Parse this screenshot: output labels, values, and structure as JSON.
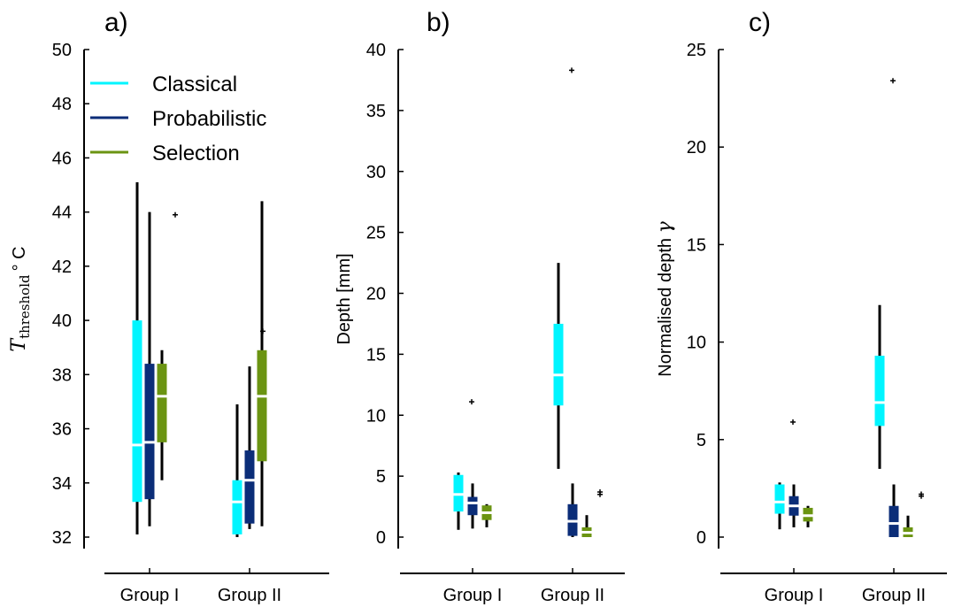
{
  "colors": {
    "Classical": "#00f5ff",
    "Probabilistic": "#0b2d78",
    "Selection": "#6b9412",
    "whisker": "#000000",
    "median": "#ffffff"
  },
  "legend": [
    "Classical",
    "Probabilistic",
    "Selection"
  ],
  "chart_data": [
    {
      "type": "box",
      "panel_label": "a)",
      "ylabel": "T",
      "ylabel_sub": "threshold",
      "ylabel_unit": "° C",
      "yticks": [
        32,
        34,
        36,
        38,
        40,
        42,
        44,
        46,
        48,
        50
      ],
      "ylim": [
        32,
        50
      ],
      "categories": [
        "Group I",
        "Group II"
      ],
      "legend_position": "top-left",
      "series": [
        {
          "name": "Classical",
          "boxes": [
            {
              "whislo": 32.1,
              "q1": 33.3,
              "med": 35.4,
              "q3": 40.0,
              "whishi": 45.1,
              "fliers": []
            },
            {
              "whislo": 32.0,
              "q1": 32.1,
              "med": 33.3,
              "q3": 34.1,
              "whishi": 36.9,
              "fliers": []
            }
          ]
        },
        {
          "name": "Probabilistic",
          "boxes": [
            {
              "whislo": 32.4,
              "q1": 33.4,
              "med": 35.5,
              "q3": 38.4,
              "whishi": 44.0,
              "fliers": []
            },
            {
              "whislo": 32.3,
              "q1": 32.5,
              "med": 34.1,
              "q3": 35.2,
              "whishi": 38.3,
              "fliers": [
                39.6
              ]
            }
          ]
        },
        {
          "name": "Selection",
          "boxes": [
            {
              "whislo": 34.1,
              "q1": 35.5,
              "med": 37.2,
              "q3": 38.4,
              "whishi": 38.9,
              "fliers": [
                43.9
              ]
            },
            {
              "whislo": 32.4,
              "q1": 34.8,
              "med": 37.2,
              "q3": 38.9,
              "whishi": 44.4,
              "fliers": []
            }
          ]
        }
      ]
    },
    {
      "type": "box",
      "panel_label": "b)",
      "ylabel": "Depth [mm]",
      "yticks": [
        0,
        5,
        10,
        15,
        20,
        25,
        30,
        35,
        40
      ],
      "ylim": [
        0,
        40
      ],
      "categories": [
        "Group I",
        "Group II"
      ],
      "series": [
        {
          "name": "Classical",
          "boxes": [
            {
              "whislo": 0.6,
              "q1": 2.1,
              "med": 3.5,
              "q3": 5.1,
              "whishi": 5.3,
              "fliers": [
                11.1
              ]
            },
            {
              "whislo": 5.6,
              "q1": 10.8,
              "med": 13.3,
              "q3": 17.5,
              "whishi": 22.5,
              "fliers": [
                38.3
              ]
            }
          ]
        },
        {
          "name": "Probabilistic",
          "boxes": [
            {
              "whislo": 0.7,
              "q1": 1.8,
              "med": 2.8,
              "q3": 3.3,
              "whishi": 4.4,
              "fliers": []
            },
            {
              "whislo": 0.0,
              "q1": 0.1,
              "med": 1.3,
              "q3": 2.7,
              "whishi": 4.4,
              "fliers": []
            }
          ]
        },
        {
          "name": "Selection",
          "boxes": [
            {
              "whislo": 0.8,
              "q1": 1.4,
              "med": 2.0,
              "q3": 2.6,
              "whishi": 2.7,
              "fliers": []
            },
            {
              "whislo": 0.0,
              "q1": 0.0,
              "med": 0.4,
              "q3": 0.8,
              "whishi": 1.8,
              "fliers": [
                3.5,
                3.7
              ]
            }
          ]
        }
      ]
    },
    {
      "type": "box",
      "panel_label": "c)",
      "ylabel": "Normalised depth",
      "ylabel_symbol": "γ",
      "yticks": [
        0,
        5,
        10,
        15,
        20,
        25
      ],
      "ylim": [
        0,
        25
      ],
      "categories": [
        "Group I",
        "Group II"
      ],
      "series": [
        {
          "name": "Classical",
          "boxes": [
            {
              "whislo": 0.4,
              "q1": 1.2,
              "med": 1.8,
              "q3": 2.7,
              "whishi": 2.8,
              "fliers": [
                5.9
              ]
            },
            {
              "whislo": 3.5,
              "q1": 5.7,
              "med": 6.9,
              "q3": 9.3,
              "whishi": 11.9,
              "fliers": [
                23.4
              ]
            }
          ]
        },
        {
          "name": "Probabilistic",
          "boxes": [
            {
              "whislo": 0.5,
              "q1": 1.1,
              "med": 1.6,
              "q3": 2.1,
              "whishi": 2.7,
              "fliers": []
            },
            {
              "whislo": 0.0,
              "q1": 0.0,
              "med": 0.7,
              "q3": 1.6,
              "whishi": 2.7,
              "fliers": []
            }
          ]
        },
        {
          "name": "Selection",
          "boxes": [
            {
              "whislo": 0.5,
              "q1": 0.8,
              "med": 1.1,
              "q3": 1.5,
              "whishi": 1.6,
              "fliers": []
            },
            {
              "whislo": 0.0,
              "q1": 0.0,
              "med": 0.2,
              "q3": 0.5,
              "whishi": 1.1,
              "fliers": [
                2.1,
                2.2
              ]
            }
          ]
        }
      ]
    }
  ]
}
